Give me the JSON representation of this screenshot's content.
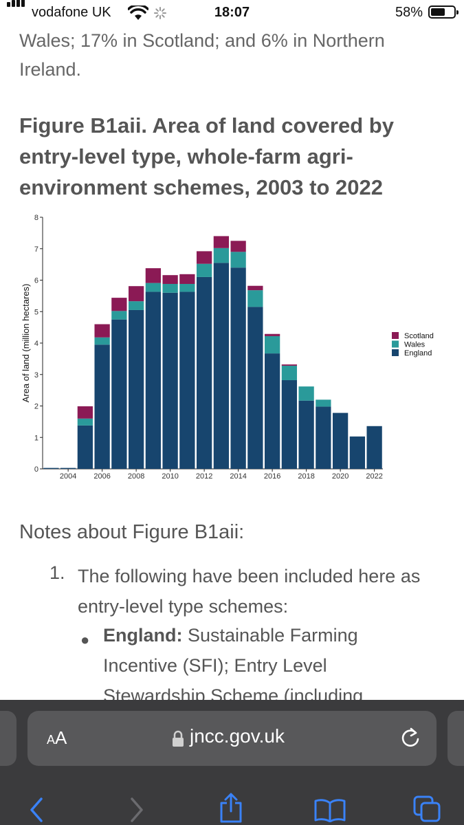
{
  "status": {
    "carrier": "vodafone UK",
    "time": "18:07",
    "battery": "58%"
  },
  "article": {
    "paragraph_lines": [
      "Wales; 17% in Scotland; and 6% in Northern",
      "Ireland."
    ],
    "figure_title_lines": [
      "Figure B1aii. Area of land covered by",
      "entry-level type, whole-farm agri-",
      "environment schemes, 2003 to 2022"
    ],
    "notes_title": "Notes about Figure B1aii:",
    "list_number": "1.",
    "list_item_lines": [
      "The following have been included here as",
      "entry-level type schemes:"
    ],
    "sub_label": "England:",
    "sub_text_first": " Sustainable Farming",
    "sub_text_lines": [
      "Incentive (SFI); Entry Level",
      "Stewardship Scheme (including"
    ]
  },
  "chart_data": {
    "type": "bar",
    "stacked": true,
    "ylabel": "Area of land (million hectares)",
    "xlabel": "",
    "ylim": [
      0,
      8
    ],
    "yticks": [
      0,
      1,
      2,
      3,
      4,
      5,
      6,
      7,
      8
    ],
    "xticks": [
      "2004",
      "2006",
      "2008",
      "2010",
      "2012",
      "2014",
      "2016",
      "2018",
      "2020",
      "2022"
    ],
    "categories": [
      2003,
      2004,
      2005,
      2006,
      2007,
      2008,
      2009,
      2010,
      2011,
      2012,
      2013,
      2014,
      2015,
      2016,
      2017,
      2018,
      2019,
      2020,
      2021,
      2022
    ],
    "legend_position": "right",
    "series": [
      {
        "name": "England",
        "color": "#17456e",
        "values": [
          0.03,
          0.03,
          1.38,
          3.95,
          4.75,
          5.05,
          5.63,
          5.6,
          5.63,
          6.1,
          6.55,
          6.4,
          5.15,
          3.67,
          2.82,
          2.17,
          1.98,
          1.78,
          1.03,
          1.36
        ]
      },
      {
        "name": "Wales",
        "color": "#2a9a9a",
        "values": [
          0,
          0,
          0.22,
          0.23,
          0.27,
          0.28,
          0.28,
          0.28,
          0.25,
          0.42,
          0.47,
          0.5,
          0.53,
          0.55,
          0.46,
          0.45,
          0.22,
          0,
          0,
          0
        ]
      },
      {
        "name": "Scotland",
        "color": "#8b1a55",
        "values": [
          0,
          0,
          0.39,
          0.42,
          0.42,
          0.48,
          0.47,
          0.28,
          0.31,
          0.4,
          0.38,
          0.35,
          0.14,
          0.07,
          0.04,
          0,
          0,
          0,
          0,
          0
        ]
      }
    ]
  },
  "browser": {
    "aa_small": "A",
    "aa_big": "A",
    "url": "jncc.gov.uk"
  }
}
